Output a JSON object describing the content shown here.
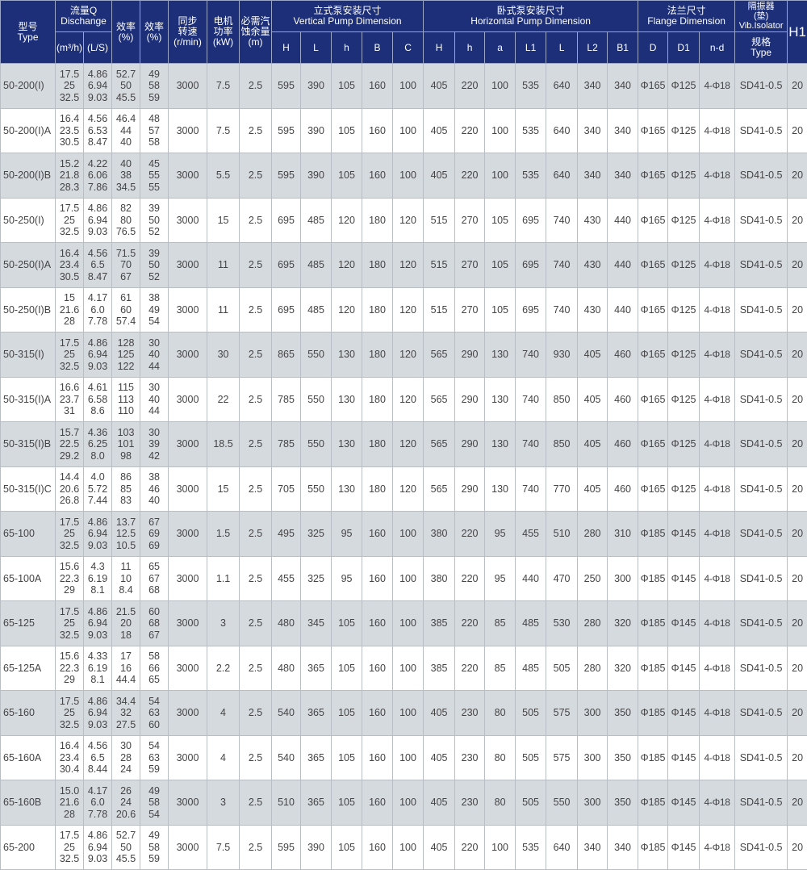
{
  "header": {
    "type": "型号\nType",
    "flow": "流量Q\nDischange",
    "flow_m3h": "(m³/h)",
    "flow_ls": "(L/S)",
    "eff1": "效率\n(%)",
    "eff2": "效率\n(%)",
    "speed": "同步\n转速\n(r/min)",
    "power": "电机\n功率\n(kW)",
    "npsh": "必需汽\n蚀余量\n(m)",
    "vertical": "立式泵安装尺寸\nVertical  Pump  Dimension",
    "vertical_cols": [
      "H",
      "L",
      "h",
      "B",
      "C"
    ],
    "horizontal": "卧式泵安装尺寸\nHorizontal Pump Dimension",
    "horizontal_cols": [
      "H",
      "h",
      "a",
      "L1",
      "L",
      "L2",
      "B1"
    ],
    "flange": "法兰尺寸\nFlange Dimension",
    "flange_cols": [
      "D",
      "D1",
      "n-d"
    ],
    "isolator": "隔振器\n(垫)\nVib.Isolator",
    "isolator_type": "规格\nType",
    "h1": "H1"
  },
  "colors": {
    "header_bg": "#1c2f78",
    "row_shade": "#d5dadf",
    "text": "#444444"
  },
  "rows": [
    [
      "50-200(I)",
      "17.5\n25\n32.5",
      "4.86\n6.94\n9.03",
      "52.7\n50\n45.5",
      "49\n58\n59",
      "3000",
      "7.5",
      "2.5",
      "595",
      "390",
      "105",
      "160",
      "100",
      "405",
      "220",
      "100",
      "535",
      "640",
      "340",
      "340",
      "Φ165",
      "Φ125",
      "4-Φ18",
      "SD41-0.5",
      "20"
    ],
    [
      "50-200(I)A",
      "16.4\n23.5\n30.5",
      "4.56\n6.53\n8.47",
      "46.4\n44\n40",
      "48\n57\n58",
      "3000",
      "7.5",
      "2.5",
      "595",
      "390",
      "105",
      "160",
      "100",
      "405",
      "220",
      "100",
      "535",
      "640",
      "340",
      "340",
      "Φ165",
      "Φ125",
      "4-Φ18",
      "SD41-0.5",
      "20"
    ],
    [
      "50-200(I)B",
      "15.2\n21.8\n28.3",
      "4.22\n6.06\n7.86",
      "40\n38\n34.5",
      "45\n55\n55",
      "3000",
      "5.5",
      "2.5",
      "595",
      "390",
      "105",
      "160",
      "100",
      "405",
      "220",
      "100",
      "535",
      "640",
      "340",
      "340",
      "Φ165",
      "Φ125",
      "4-Φ18",
      "SD41-0.5",
      "20"
    ],
    [
      "50-250(I)",
      "17.5\n25\n32.5",
      "4.86\n6.94\n9.03",
      "82\n80\n76.5",
      "39\n50\n52",
      "3000",
      "15",
      "2.5",
      "695",
      "485",
      "120",
      "180",
      "120",
      "515",
      "270",
      "105",
      "695",
      "740",
      "430",
      "440",
      "Φ165",
      "Φ125",
      "4-Φ18",
      "SD41-0.5",
      "20"
    ],
    [
      "50-250(I)A",
      "16.4\n23.4\n30.5",
      "4.56\n6.5\n8.47",
      "71.5\n70\n67",
      "39\n50\n52",
      "3000",
      "11",
      "2.5",
      "695",
      "485",
      "120",
      "180",
      "120",
      "515",
      "270",
      "105",
      "695",
      "740",
      "430",
      "440",
      "Φ165",
      "Φ125",
      "4-Φ18",
      "SD41-0.5",
      "20"
    ],
    [
      "50-250(I)B",
      "15\n21.6\n28",
      "4.17\n6.0\n7.78",
      "61\n60\n57.4",
      "38\n49\n54",
      "3000",
      "11",
      "2.5",
      "695",
      "485",
      "120",
      "180",
      "120",
      "515",
      "270",
      "105",
      "695",
      "740",
      "430",
      "440",
      "Φ165",
      "Φ125",
      "4-Φ18",
      "SD41-0.5",
      "20"
    ],
    [
      "50-315(I)",
      "17.5\n25\n32.5",
      "4.86\n6.94\n9.03",
      "128\n125\n122",
      "30\n40\n44",
      "3000",
      "30",
      "2.5",
      "865",
      "550",
      "130",
      "180",
      "120",
      "565",
      "290",
      "130",
      "740",
      "930",
      "405",
      "460",
      "Φ165",
      "Φ125",
      "4-Φ18",
      "SD41-0.5",
      "20"
    ],
    [
      "50-315(I)A",
      "16.6\n23.7\n31",
      "4.61\n6.58\n8.6",
      "115\n113\n110",
      "30\n40\n44",
      "3000",
      "22",
      "2.5",
      "785",
      "550",
      "130",
      "180",
      "120",
      "565",
      "290",
      "130",
      "740",
      "850",
      "405",
      "460",
      "Φ165",
      "Φ125",
      "4-Φ18",
      "SD41-0.5",
      "20"
    ],
    [
      "50-315(I)B",
      "15.7\n22.5\n29.2",
      "4.36\n6.25\n8.0",
      "103\n101\n98",
      "30\n39\n42",
      "3000",
      "18.5",
      "2.5",
      "785",
      "550",
      "130",
      "180",
      "120",
      "565",
      "290",
      "130",
      "740",
      "850",
      "405",
      "460",
      "Φ165",
      "Φ125",
      "4-Φ18",
      "SD41-0.5",
      "20"
    ],
    [
      "50-315(I)C",
      "14.4\n20.6\n26.8",
      "4.0\n5.72\n7.44",
      "86\n85\n83",
      "38\n46\n40",
      "3000",
      "15",
      "2.5",
      "705",
      "550",
      "130",
      "180",
      "120",
      "565",
      "290",
      "130",
      "740",
      "770",
      "405",
      "460",
      "Φ165",
      "Φ125",
      "4-Φ18",
      "SD41-0.5",
      "20"
    ],
    [
      "65-100",
      "17.5\n25\n32.5",
      "4.86\n6.94\n9.03",
      "13.7\n12.5\n10.5",
      "67\n69\n69",
      "3000",
      "1.5",
      "2.5",
      "495",
      "325",
      "95",
      "160",
      "100",
      "380",
      "220",
      "95",
      "455",
      "510",
      "280",
      "310",
      "Φ185",
      "Φ145",
      "4-Φ18",
      "SD41-0.5",
      "20"
    ],
    [
      "65-100A",
      "15.6\n22.3\n29",
      "4.3\n6.19\n8.1",
      "11\n10\n8.4",
      "65\n67\n68",
      "3000",
      "1.1",
      "2.5",
      "455",
      "325",
      "95",
      "160",
      "100",
      "380",
      "220",
      "95",
      "440",
      "470",
      "250",
      "300",
      "Φ185",
      "Φ145",
      "4-Φ18",
      "SD41-0.5",
      "20"
    ],
    [
      "65-125",
      "17.5\n25\n32.5",
      "4.86\n6.94\n9.03",
      "21.5\n20\n18",
      "60\n68\n67",
      "3000",
      "3",
      "2.5",
      "480",
      "345",
      "105",
      "160",
      "100",
      "385",
      "220",
      "85",
      "485",
      "530",
      "280",
      "320",
      "Φ185",
      "Φ145",
      "4-Φ18",
      "SD41-0.5",
      "20"
    ],
    [
      "65-125A",
      "15.6\n22.3\n29",
      "4.33\n6.19\n8.1",
      "17\n16\n44.4",
      "58\n66\n65",
      "3000",
      "2.2",
      "2.5",
      "480",
      "365",
      "105",
      "160",
      "100",
      "385",
      "220",
      "85",
      "485",
      "505",
      "280",
      "320",
      "Φ185",
      "Φ145",
      "4-Φ18",
      "SD41-0.5",
      "20"
    ],
    [
      "65-160",
      "17.5\n25\n32.5",
      "4.86\n6.94\n9.03",
      "34.4\n32\n27.5",
      "54\n63\n60",
      "3000",
      "4",
      "2.5",
      "540",
      "365",
      "105",
      "160",
      "100",
      "405",
      "230",
      "80",
      "505",
      "575",
      "300",
      "350",
      "Φ185",
      "Φ145",
      "4-Φ18",
      "SD41-0.5",
      "20"
    ],
    [
      "65-160A",
      "16.4\n23.4\n30.4",
      "4.56\n6.5\n8.44",
      "30\n28\n24",
      "54\n63\n59",
      "3000",
      "4",
      "2.5",
      "540",
      "365",
      "105",
      "160",
      "100",
      "405",
      "230",
      "80",
      "505",
      "575",
      "300",
      "350",
      "Φ185",
      "Φ145",
      "4-Φ18",
      "SD41-0.5",
      "20"
    ],
    [
      "65-160B",
      "15.0\n21.6\n28",
      "4.17\n6.0\n7.78",
      "26\n24\n20.6",
      "49\n58\n54",
      "3000",
      "3",
      "2.5",
      "510",
      "365",
      "105",
      "160",
      "100",
      "405",
      "230",
      "80",
      "505",
      "550",
      "300",
      "350",
      "Φ185",
      "Φ145",
      "4-Φ18",
      "SD41-0.5",
      "20"
    ],
    [
      "65-200",
      "17.5\n25\n32.5",
      "4.86\n6.94\n9.03",
      "52.7\n50\n45.5",
      "49\n58\n59",
      "3000",
      "7.5",
      "2.5",
      "595",
      "390",
      "105",
      "160",
      "100",
      "405",
      "220",
      "100",
      "535",
      "640",
      "340",
      "340",
      "Φ185",
      "Φ145",
      "4-Φ18",
      "SD41-0.5",
      "20"
    ]
  ]
}
